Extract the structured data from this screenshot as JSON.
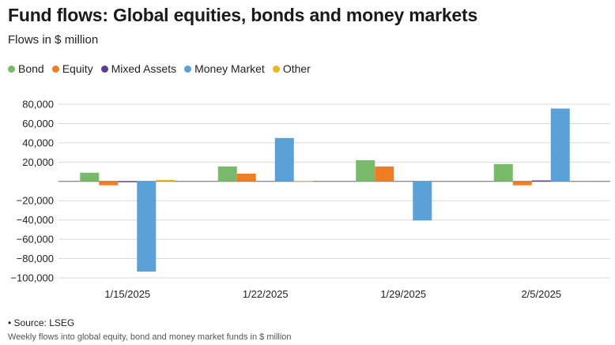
{
  "header": {
    "title": "Fund flows: Global equities, bonds and money markets",
    "subtitle": "Flows in $ million"
  },
  "legend": [
    {
      "label": "Bond",
      "color": "#79b96a"
    },
    {
      "label": "Equity",
      "color": "#ee7d25"
    },
    {
      "label": "Mixed Assets",
      "color": "#5a3e8e"
    },
    {
      "label": "Money Market",
      "color": "#5aa1d8"
    },
    {
      "label": "Other",
      "color": "#f2b41c"
    }
  ],
  "footer": {
    "source": "• Source: LSEG",
    "caption": "Weekly flows into global equity, bond and money market funds in $ million"
  },
  "chart_data": {
    "type": "bar",
    "categories": [
      "1/15/2025",
      "1/22/2025",
      "1/29/2025",
      "2/5/2025"
    ],
    "series": [
      {
        "name": "Bond",
        "color": "#79b96a",
        "values": [
          9000,
          15500,
          22000,
          18000
        ]
      },
      {
        "name": "Equity",
        "color": "#ee7d25",
        "values": [
          -4000,
          8000,
          15500,
          -4000
        ]
      },
      {
        "name": "Mixed Assets",
        "color": "#5a3e8e",
        "values": [
          -500,
          0,
          0,
          1000
        ]
      },
      {
        "name": "Money Market",
        "color": "#5aa1d8",
        "values": [
          -93500,
          45000,
          -40500,
          75500
        ]
      },
      {
        "name": "Other",
        "color": "#f2b41c",
        "values": [
          1500,
          500,
          0,
          0
        ]
      }
    ],
    "yticks": [
      80000,
      60000,
      40000,
      20000,
      0,
      -20000,
      -40000,
      -60000,
      -80000,
      -100000
    ],
    "ytick_labels": [
      "80,000",
      "60,000",
      "40,000",
      "20,000",
      "",
      "−20,000",
      "−40,000",
      "−60,000",
      "−80,000",
      "−100,000"
    ],
    "ylim": [
      -100000,
      80000
    ],
    "grid": true,
    "legend_position": "top-left"
  }
}
